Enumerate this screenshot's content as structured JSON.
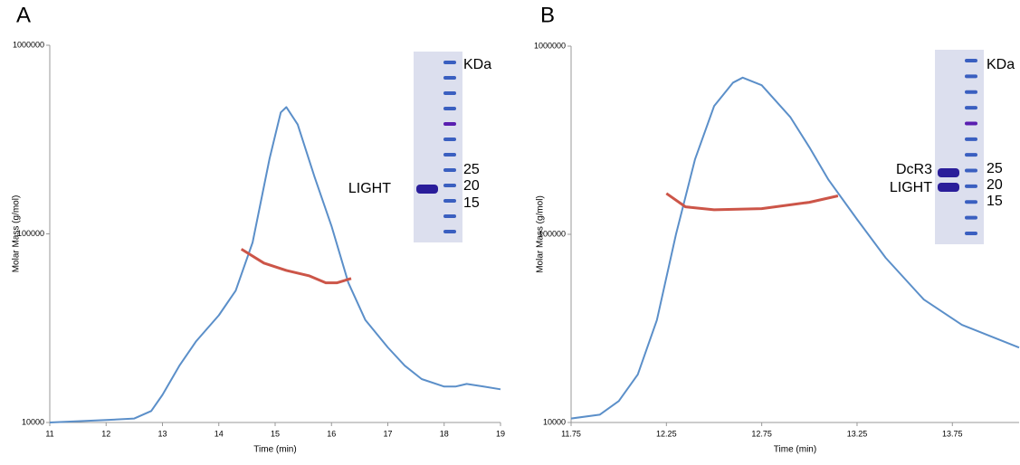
{
  "chart_data": [
    {
      "type": "line",
      "panel_label": "A",
      "x_label": "Time (min)",
      "y_label": "Molar Mass (g/mol)",
      "log_y": true,
      "xlim": [
        11,
        19
      ],
      "xticks": [
        11,
        12,
        13,
        14,
        15,
        16,
        17,
        18,
        19
      ],
      "ylim": [
        10000,
        1000000
      ],
      "yticks": [
        10000,
        100000,
        1000000
      ],
      "gel_protein_labels": [
        "LIGHT"
      ],
      "gel_marker_labels": [
        "KDa",
        "25",
        "20",
        "15"
      ],
      "series": [
        {
          "color": "#5b8fc9",
          "x": [
            11,
            12,
            12.5,
            12.8,
            13,
            13.3,
            13.6,
            14,
            14.3,
            14.6,
            14.9,
            15.1,
            15.2,
            15.4,
            15.7,
            16,
            16.3,
            16.6,
            17,
            17.3,
            17.6,
            18,
            18.2,
            18.4,
            18.7,
            19
          ],
          "values": [
            10000,
            10300,
            10500,
            11500,
            14000,
            20000,
            27000,
            37000,
            50000,
            90000,
            250000,
            440000,
            470000,
            380000,
            200000,
            110000,
            55000,
            35000,
            25000,
            20000,
            17000,
            15500,
            15500,
            16000,
            15500,
            15000
          ]
        },
        {
          "color": "#cc5548",
          "x": [
            14.4,
            14.8,
            15.2,
            15.6,
            15.9,
            16.1,
            16.35
          ],
          "values": [
            83000,
            70000,
            64000,
            60000,
            55000,
            55000,
            58000
          ]
        }
      ]
    },
    {
      "type": "line",
      "panel_label": "B",
      "x_label": "Time (min)",
      "y_label": "Molar Mass (g/mol)",
      "log_y": true,
      "xlim": [
        11.75,
        14.1
      ],
      "xticks": [
        11.75,
        12.25,
        12.75,
        13.25,
        13.75
      ],
      "ylim": [
        10000,
        1000000
      ],
      "yticks": [
        10000,
        100000,
        1000000
      ],
      "gel_protein_labels": [
        "DcR3",
        "LIGHT"
      ],
      "gel_marker_labels": [
        "KDa",
        "25",
        "20",
        "15"
      ],
      "series": [
        {
          "color": "#5b8fc9",
          "x": [
            11.75,
            11.9,
            12.0,
            12.1,
            12.2,
            12.3,
            12.4,
            12.5,
            12.6,
            12.65,
            12.75,
            12.9,
            13.0,
            13.1,
            13.25,
            13.4,
            13.6,
            13.8,
            14.1
          ],
          "values": [
            10500,
            11000,
            13000,
            18000,
            35000,
            100000,
            250000,
            480000,
            640000,
            680000,
            620000,
            420000,
            290000,
            195000,
            120000,
            75000,
            45000,
            33000,
            25000
          ]
        },
        {
          "color": "#cc5548",
          "x": [
            12.25,
            12.35,
            12.5,
            12.75,
            13.0,
            13.15
          ],
          "values": [
            165000,
            140000,
            135000,
            137000,
            148000,
            160000
          ]
        }
      ]
    }
  ]
}
